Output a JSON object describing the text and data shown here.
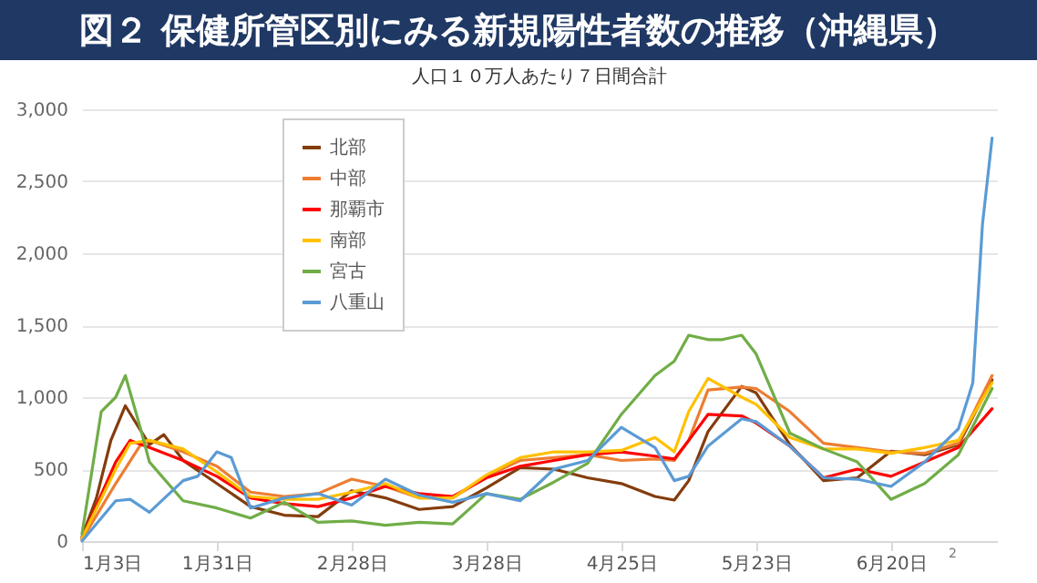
{
  "chart_data": {
    "type": "line",
    "title": "図２ 保健所管区別にみる新規陽性者数の推移（沖縄県）",
    "subtitle": "人口１０万人あたり７日間合計",
    "annotations": [
      "2"
    ],
    "ylim": [
      0,
      3000
    ],
    "yticks": [
      {
        "value": 0,
        "label": "0"
      },
      {
        "value": 500,
        "label": "500"
      },
      {
        "value": 1000,
        "label": "1,000"
      },
      {
        "value": 1500,
        "label": "1,500"
      },
      {
        "value": 2000,
        "label": "2,000"
      },
      {
        "value": 2500,
        "label": "2,500"
      },
      {
        "value": 3000,
        "label": "3,000"
      }
    ],
    "xlim": [
      "--01-03",
      "--07-12"
    ],
    "xticks": [
      {
        "value": "--01-03",
        "label": "1月3日"
      },
      {
        "value": "--01-31",
        "label": "1月31日"
      },
      {
        "value": "--02-28",
        "label": "2月28日"
      },
      {
        "value": "--03-28",
        "label": "3月28日"
      },
      {
        "value": "--04-25",
        "label": "4月25日"
      },
      {
        "value": "--05-23",
        "label": "5月23日"
      },
      {
        "value": "--06-20",
        "label": "6月20日"
      }
    ],
    "grid": "y",
    "legend": "top left",
    "series": [
      {
        "name": "北部",
        "color": "#843c0c",
        "x": [
          "--01-03",
          "--01-06",
          "--01-09",
          "--01-12",
          "--01-17",
          "--01-20",
          "--01-24",
          "--01-31",
          "--02-07",
          "--02-14",
          "--02-21",
          "--02-28",
          "--03-07",
          "--03-14",
          "--03-21",
          "--03-28",
          "--04-04",
          "--04-11",
          "--04-18",
          "--04-25",
          "--05-02",
          "--05-06",
          "--05-09",
          "--05-13",
          "--05-20",
          "--05-23",
          "--05-30",
          "--06-06",
          "--06-13",
          "--06-20",
          "--06-27",
          "--07-04",
          "--07-11"
        ],
        "values": [
          30,
          300,
          700,
          940,
          670,
          740,
          560,
          400,
          240,
          180,
          170,
          350,
          300,
          220,
          240,
          370,
          510,
          500,
          440,
          400,
          310,
          285,
          420,
          760,
          1075,
          1030,
          670,
          420,
          440,
          625,
          600,
          670,
          1120
        ]
      },
      {
        "name": "中部",
        "color": "#ed7d31",
        "x": [
          "--01-03",
          "--01-10",
          "--01-15",
          "--01-17",
          "--01-24",
          "--01-31",
          "--02-07",
          "--02-14",
          "--02-21",
          "--02-28",
          "--03-07",
          "--03-14",
          "--03-21",
          "--03-28",
          "--04-04",
          "--04-11",
          "--04-18",
          "--04-25",
          "--05-02",
          "--05-06",
          "--05-09",
          "--05-13",
          "--05-20",
          "--05-23",
          "--05-30",
          "--06-06",
          "--06-13",
          "--06-20",
          "--06-27",
          "--07-04",
          "--07-11"
        ],
        "values": [
          10,
          400,
          660,
          700,
          620,
          520,
          340,
          310,
          330,
          430,
          380,
          300,
          300,
          450,
          560,
          580,
          600,
          560,
          570,
          560,
          700,
          1050,
          1070,
          1060,
          900,
          680,
          650,
          620,
          610,
          680,
          1150
        ]
      },
      {
        "name": "那覇市",
        "color": "#ff0000",
        "x": [
          "--01-03",
          "--01-10",
          "--01-13",
          "--01-17",
          "--01-24",
          "--01-31",
          "--02-07",
          "--02-14",
          "--02-21",
          "--02-28",
          "--03-07",
          "--03-14",
          "--03-21",
          "--03-28",
          "--04-04",
          "--04-11",
          "--04-18",
          "--04-25",
          "--05-02",
          "--05-06",
          "--05-09",
          "--05-13",
          "--05-20",
          "--05-23",
          "--05-30",
          "--06-06",
          "--06-13",
          "--06-20",
          "--06-27",
          "--07-04",
          "--07-11"
        ],
        "values": [
          20,
          550,
          700,
          650,
          560,
          450,
          300,
          260,
          240,
          300,
          380,
          330,
          310,
          440,
          520,
          560,
          600,
          620,
          590,
          570,
          700,
          880,
          870,
          820,
          660,
          440,
          500,
          450,
          550,
          650,
          920
        ]
      },
      {
        "name": "南部",
        "color": "#ffc000",
        "x": [
          "--01-03",
          "--01-10",
          "--01-13",
          "--01-17",
          "--01-24",
          "--01-31",
          "--02-07",
          "--02-14",
          "--02-21",
          "--02-28",
          "--03-07",
          "--03-14",
          "--03-21",
          "--03-28",
          "--04-04",
          "--04-11",
          "--04-18",
          "--04-25",
          "--05-02",
          "--05-06",
          "--05-09",
          "--05-13",
          "--05-20",
          "--05-23",
          "--05-30",
          "--06-06",
          "--06-13",
          "--06-20",
          "--06-27",
          "--07-04",
          "--07-11"
        ],
        "values": [
          20,
          500,
          680,
          700,
          640,
          480,
          310,
          290,
          290,
          340,
          400,
          300,
          300,
          460,
          580,
          620,
          620,
          630,
          720,
          620,
          900,
          1130,
          1000,
          950,
          720,
          640,
          640,
          610,
          650,
          700,
          1100
        ]
      },
      {
        "name": "宮古",
        "color": "#70ad47",
        "x": [
          "--01-03",
          "--01-07",
          "--01-10",
          "--01-12",
          "--01-15",
          "--01-17",
          "--01-24",
          "--01-31",
          "--02-07",
          "--02-14",
          "--02-21",
          "--02-28",
          "--03-07",
          "--03-14",
          "--03-21",
          "--03-28",
          "--04-04",
          "--04-11",
          "--04-18",
          "--04-25",
          "--05-02",
          "--05-06",
          "--05-09",
          "--05-13",
          "--05-16",
          "--05-20",
          "--05-23",
          "--05-30",
          "--06-06",
          "--06-13",
          "--06-20",
          "--06-27",
          "--07-04",
          "--07-11"
        ],
        "values": [
          50,
          900,
          1000,
          1150,
          800,
          550,
          280,
          230,
          160,
          270,
          130,
          140,
          110,
          130,
          120,
          330,
          290,
          410,
          540,
          880,
          1150,
          1250,
          1430,
          1400,
          1400,
          1430,
          1300,
          750,
          640,
          550,
          290,
          400,
          600,
          1060
        ]
      },
      {
        "name": "八重山",
        "color": "#5b9bd5",
        "x": [
          "--01-03",
          "--01-10",
          "--01-13",
          "--01-17",
          "--01-24",
          "--01-27",
          "--01-31",
          "--02-03",
          "--02-07",
          "--02-14",
          "--02-21",
          "--02-28",
          "--03-07",
          "--03-14",
          "--03-21",
          "--03-28",
          "--04-04",
          "--04-11",
          "--04-18",
          "--04-25",
          "--05-02",
          "--05-06",
          "--05-09",
          "--05-13",
          "--05-20",
          "--05-23",
          "--05-30",
          "--06-06",
          "--06-13",
          "--06-20",
          "--06-27",
          "--07-04",
          "--07-07",
          "--07-09",
          "--07-11"
        ],
        "values": [
          0,
          280,
          290,
          200,
          420,
          450,
          620,
          580,
          230,
          300,
          330,
          250,
          430,
          320,
          270,
          330,
          280,
          500,
          560,
          790,
          650,
          420,
          450,
          660,
          850,
          830,
          660,
          440,
          430,
          380,
          550,
          780,
          1100,
          2200,
          2800
        ]
      }
    ]
  }
}
